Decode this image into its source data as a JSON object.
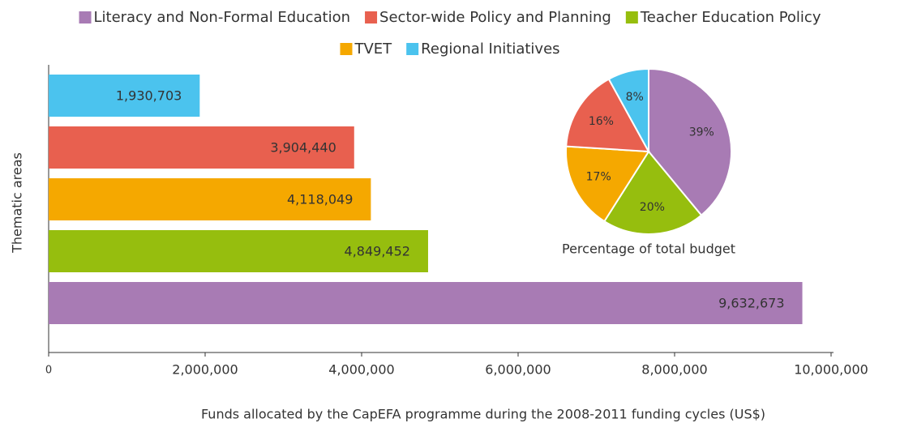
{
  "chart_data": [
    {
      "type": "barh",
      "categories": [
        "Regional Initiatives",
        "Sector-wide Policy and Planning",
        "TVET",
        "Teacher Education Policy",
        "Literacy and Non-Formal Education"
      ],
      "values": [
        1930703,
        3904440,
        4118049,
        4849452,
        9632673
      ],
      "value_labels": [
        "1,930,703",
        "3,904,440",
        "4,118,049",
        "4,849,452",
        "9,632,673"
      ],
      "colors": [
        "#4bc3ee",
        "#e8604f",
        "#f5a800",
        "#96be0e",
        "#a87bb4"
      ],
      "xlim": [
        0,
        10000000
      ],
      "xticks": [
        0,
        {
          "value": 2000000,
          "label": "2,000,000"
        },
        {
          "value": 4000000,
          "label": "4,000,000"
        },
        {
          "value": 6000000,
          "label": "6,000,000"
        },
        {
          "value": 8000000,
          "label": "8,000,000"
        },
        {
          "value": 10000000,
          "label": "10,000,000"
        }
      ],
      "xlabel": "Funds allocated by the CapEFA programme during the 2008-2011 funding cycles (US$)",
      "ylabel": "Thematic areas",
      "legend": "top"
    },
    {
      "type": "pie",
      "title": "Percentage of total budget",
      "categories": [
        "Literacy and Non-Formal Education",
        "Teacher Education Policy",
        "TVET",
        "Sector-wide Policy and Planning",
        "Regional Initiatives"
      ],
      "values": [
        39,
        20,
        17,
        16,
        8
      ],
      "value_labels": [
        "39%",
        "20%",
        "17%",
        "16%",
        "8%"
      ],
      "colors": [
        "#a87bb4",
        "#96be0e",
        "#f5a800",
        "#e8604f",
        "#4bc3ee"
      ]
    }
  ]
}
